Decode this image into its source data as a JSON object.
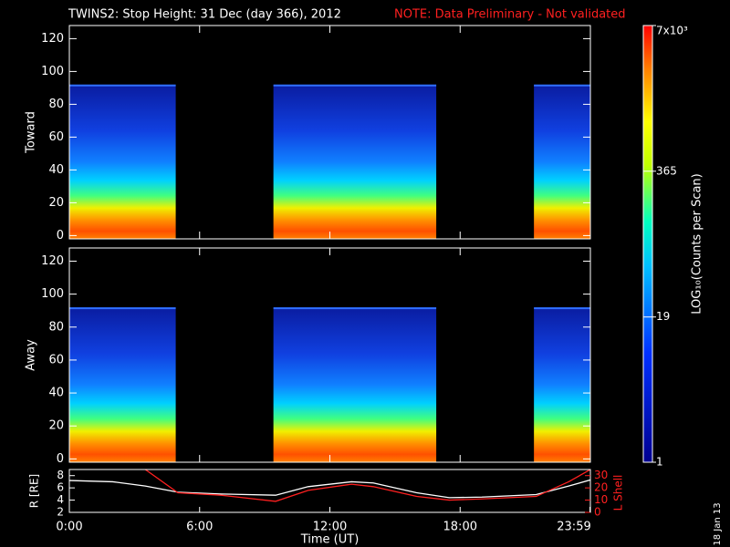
{
  "header": {
    "title": "TWINS2: Stop Height: 31 Dec (day 366), 2012",
    "note": "NOTE: Data Preliminary - Not validated",
    "date_stamp": "18 Jan 13"
  },
  "chart_data": [
    {
      "type": "heatmap",
      "ylabel": "Toward",
      "xlim": [
        0,
        24
      ],
      "xticks": [
        0,
        6,
        12,
        18,
        24
      ],
      "ylim": [
        -2,
        128
      ],
      "yticks": [
        0,
        20,
        40,
        60,
        80,
        100,
        120
      ],
      "intervals": [
        [
          0,
          4.9
        ],
        [
          9.4,
          16.9
        ],
        [
          21.4,
          24
        ]
      ],
      "top": 92
    },
    {
      "type": "heatmap",
      "ylabel": "Away",
      "xlim": [
        0,
        24
      ],
      "xticks": [
        0,
        6,
        12,
        18,
        24
      ],
      "ylim": [
        -2,
        128
      ],
      "yticks": [
        0,
        20,
        40,
        60,
        80,
        100,
        120
      ],
      "intervals": [
        [
          0,
          4.9
        ],
        [
          9.4,
          16.9
        ],
        [
          21.4,
          24
        ]
      ],
      "top": 92
    },
    {
      "type": "colorbar",
      "label": "LOG₁₀(Counts per Scan)",
      "log": true,
      "vlim": [
        1,
        7000
      ],
      "ticks": [
        1,
        19,
        365,
        {
          "value": 7000,
          "label": "7x10³"
        }
      ]
    },
    {
      "type": "line",
      "xlabel": "Time (UT)",
      "ylabel": "R [RE]",
      "y2label": "L Shell",
      "xlim": [
        0,
        24
      ],
      "xticks": [
        {
          "value": 0,
          "label": "0:00"
        },
        {
          "value": 6,
          "label": "6:00"
        },
        {
          "value": 12,
          "label": "12:00"
        },
        {
          "value": 18,
          "label": "18:00"
        },
        {
          "value": 23.98,
          "label": "23:59"
        }
      ],
      "ylim": [
        2,
        9
      ],
      "yticks": [
        2,
        4,
        6,
        8
      ],
      "y2lim": [
        0,
        35
      ],
      "y2ticks": [
        0,
        10,
        20,
        30
      ],
      "x": [
        0,
        2,
        3.5,
        5,
        7,
        9.5,
        11,
        13,
        14,
        16,
        17.5,
        19,
        21.5,
        23,
        24
      ],
      "series": [
        {
          "name": "R",
          "color": "#ffffff",
          "values": [
            7.2,
            7.0,
            6.3,
            5.3,
            5.0,
            4.8,
            6.2,
            7.0,
            6.8,
            5.2,
            4.4,
            4.5,
            4.9,
            6.3,
            7.3
          ]
        },
        {
          "name": "L Shell",
          "color": "#ff2020",
          "axis": "y2",
          "values": [
            null,
            null,
            35,
            16,
            14,
            9,
            18,
            23,
            21,
            13,
            10,
            11,
            13,
            25,
            35
          ]
        }
      ]
    }
  ]
}
